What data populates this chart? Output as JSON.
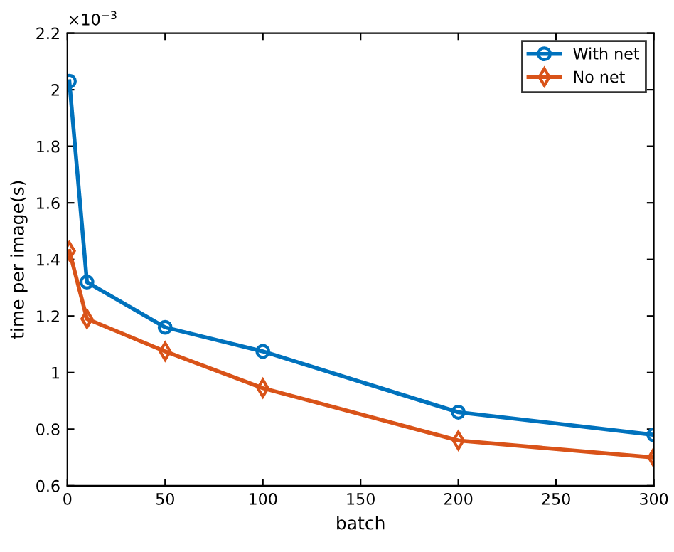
{
  "chart_data": {
    "type": "line",
    "xlabel": "batch",
    "ylabel": "time per image(s)",
    "annotations": [
      "×10$^{−3}$"
    ],
    "series": [
      {
        "name": "With net",
        "color": "#0072bd",
        "marker": "circle",
        "x": [
          1,
          10,
          50,
          100,
          200,
          300
        ],
        "values": [
          2.03,
          1.32,
          1.16,
          1.075,
          0.86,
          0.78
        ]
      },
      {
        "name": "No net",
        "color": "#d95319",
        "marker": "diamond",
        "x": [
          1,
          10,
          50,
          100,
          200,
          300
        ],
        "values": [
          1.43,
          1.19,
          1.075,
          0.945,
          0.76,
          0.7
        ]
      }
    ],
    "xlim": [
      0,
      300
    ],
    "xticks": [
      0,
      50,
      100,
      150,
      200,
      250,
      300
    ],
    "ylim": [
      0.6,
      2.2
    ],
    "yticks": [
      0.6,
      0.8,
      1,
      1.2,
      1.4,
      1.6,
      1.8,
      2,
      2.2
    ],
    "legend": "top right",
    "grid": false,
    "line_style": "solid"
  }
}
